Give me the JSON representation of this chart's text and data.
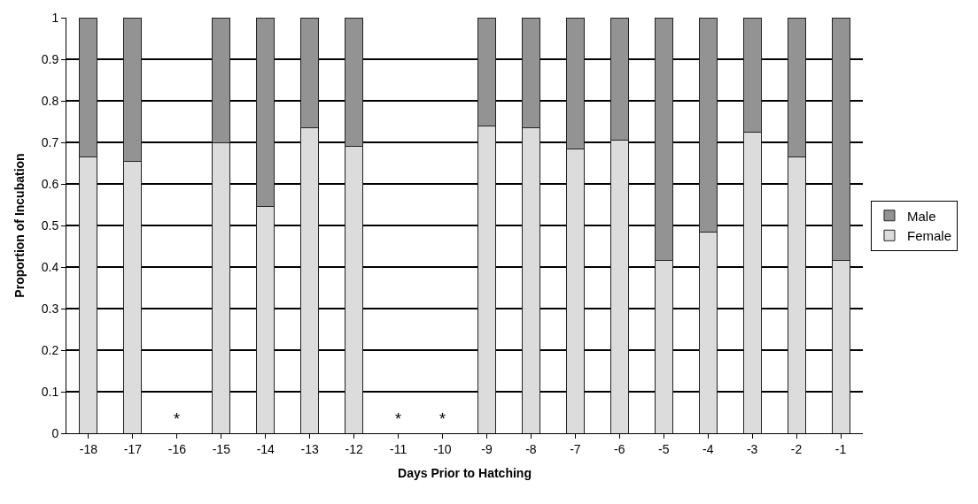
{
  "chart_data": {
    "type": "bar",
    "stacked": true,
    "xlabel": "Days Prior to Hatching",
    "ylabel": "Proportion of Incubation",
    "categories": [
      "-18",
      "-17",
      "-16",
      "-15",
      "-14",
      "-13",
      "-12",
      "-11",
      "-10",
      "-9",
      "-8",
      "-7",
      "-6",
      "-5",
      "-4",
      "-3",
      "-2",
      "-1"
    ],
    "series": [
      {
        "name": "Female",
        "color": "#dcdcdc",
        "values": [
          0.665,
          0.655,
          null,
          0.7,
          0.545,
          0.735,
          0.69,
          null,
          null,
          0.74,
          0.735,
          0.685,
          0.705,
          0.415,
          0.485,
          0.725,
          0.665,
          0.415
        ]
      },
      {
        "name": "Male",
        "color": "#939393",
        "values": [
          0.335,
          0.345,
          null,
          0.3,
          0.455,
          0.265,
          0.31,
          null,
          null,
          0.26,
          0.265,
          0.315,
          0.295,
          0.585,
          0.515,
          0.275,
          0.335,
          0.585
        ]
      }
    ],
    "annotations": [
      "*",
      "*",
      "*"
    ],
    "ylim": [
      0,
      1
    ],
    "yticks": [
      0,
      0.1,
      0.2,
      0.3,
      0.4,
      0.5,
      0.6,
      0.7,
      0.8,
      0.9,
      1
    ],
    "grid": "y",
    "legend": "right"
  }
}
